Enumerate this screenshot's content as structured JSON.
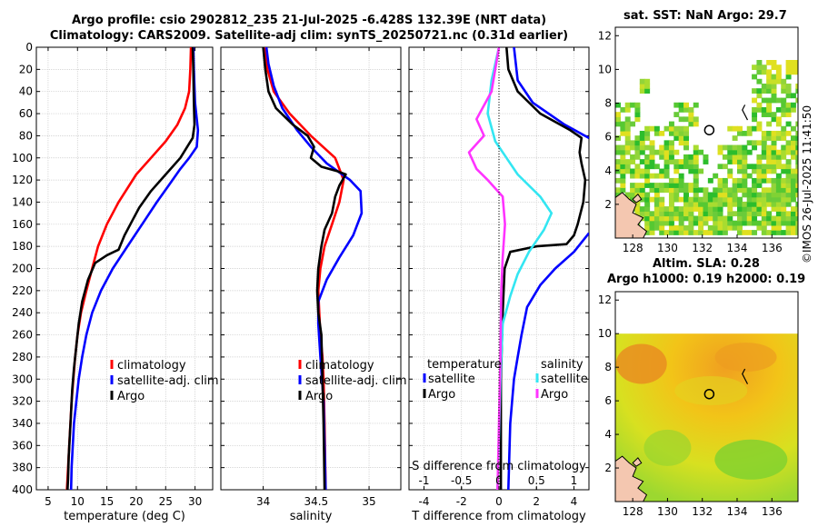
{
  "title": {
    "line1": "Argo profile: csio 2902812_235 21-Jul-2025 -6.428S 132.39E (NRT data)",
    "line2": "Climatology: CARS2009. Satellite-adj clim: synTS_20250721.nc (0.31d earlier)"
  },
  "colors": {
    "climatology": "#ff0000",
    "satellite": "#0000ff",
    "argo": "#000000",
    "s_satellite": "#33e6f2",
    "s_argo": "#ff33ff",
    "grid": "#c8c8c8"
  },
  "depth_ticks": [
    0,
    20,
    40,
    60,
    80,
    100,
    120,
    140,
    160,
    180,
    200,
    220,
    240,
    260,
    280,
    300,
    320,
    340,
    360,
    380,
    400
  ],
  "chart_data": [
    {
      "type": "line",
      "panel": "temperature",
      "xlabel": "temperature (deg C)",
      "ylabel": "",
      "xlim": [
        3,
        33
      ],
      "ylim": [
        400,
        0
      ],
      "xticks": [
        5,
        10,
        15,
        20,
        25,
        30
      ],
      "xtick_labels": [
        "5",
        "10",
        "15",
        "20",
        "25",
        "30"
      ],
      "legend": {
        "position": "lower-right",
        "entries": [
          "climatology",
          "satellite-adj. clim",
          "Argo"
        ]
      },
      "series": [
        {
          "name": "climatology",
          "color": "#ff0000",
          "points": [
            [
              29.3,
              0
            ],
            [
              29.2,
              20
            ],
            [
              29.0,
              40
            ],
            [
              28.3,
              55
            ],
            [
              27.0,
              70
            ],
            [
              25.0,
              85
            ],
            [
              22.5,
              100
            ],
            [
              20.0,
              115
            ],
            [
              17.0,
              140
            ],
            [
              15.0,
              160
            ],
            [
              13.5,
              180
            ],
            [
              12.5,
              200
            ],
            [
              11.5,
              220
            ],
            [
              10.6,
              240
            ],
            [
              10.0,
              260
            ],
            [
              9.6,
              280
            ],
            [
              9.3,
              300
            ],
            [
              9.0,
              320
            ],
            [
              8.8,
              340
            ],
            [
              8.6,
              360
            ],
            [
              8.4,
              380
            ],
            [
              8.2,
              400
            ]
          ]
        },
        {
          "name": "satellite-adj. clim",
          "color": "#0000ff",
          "points": [
            [
              29.7,
              0
            ],
            [
              29.8,
              20
            ],
            [
              30.0,
              50
            ],
            [
              30.5,
              75
            ],
            [
              30.3,
              90
            ],
            [
              29.0,
              100
            ],
            [
              27.5,
              110
            ],
            [
              25.5,
              125
            ],
            [
              23.5,
              140
            ],
            [
              21.0,
              160
            ],
            [
              18.5,
              180
            ],
            [
              16.0,
              200
            ],
            [
              14.0,
              220
            ],
            [
              12.5,
              240
            ],
            [
              11.5,
              260
            ],
            [
              10.8,
              280
            ],
            [
              10.2,
              300
            ],
            [
              9.8,
              320
            ],
            [
              9.4,
              340
            ],
            [
              9.2,
              360
            ],
            [
              9.0,
              380
            ],
            [
              8.9,
              400
            ]
          ]
        },
        {
          "name": "Argo",
          "color": "#000000",
          "points": [
            [
              29.6,
              0
            ],
            [
              29.7,
              20
            ],
            [
              29.8,
              50
            ],
            [
              29.9,
              70
            ],
            [
              29.6,
              82
            ],
            [
              27.5,
              100
            ],
            [
              25.0,
              115
            ],
            [
              22.5,
              130
            ],
            [
              20.5,
              145
            ],
            [
              19.5,
              155
            ],
            [
              18.0,
              170
            ],
            [
              17.0,
              183
            ],
            [
              15.0,
              188
            ],
            [
              13.0,
              195
            ],
            [
              11.8,
              210
            ],
            [
              10.8,
              230
            ],
            [
              10.2,
              250
            ],
            [
              9.8,
              270
            ],
            [
              9.4,
              290
            ],
            [
              9.1,
              310
            ],
            [
              8.9,
              330
            ],
            [
              8.7,
              350
            ],
            [
              8.5,
              370
            ],
            [
              8.4,
              390
            ],
            [
              8.3,
              400
            ]
          ]
        }
      ]
    },
    {
      "type": "line",
      "panel": "salinity",
      "xlabel": "salinity",
      "ylabel": "",
      "xlim": [
        33.6,
        35.3
      ],
      "ylim": [
        400,
        0
      ],
      "xticks": [
        34,
        34.5,
        35
      ],
      "xtick_labels": [
        "34",
        "34.5",
        "35"
      ],
      "legend": {
        "position": "lower-right",
        "entries": [
          "climatology",
          "satellite-adj. clim",
          "Argo"
        ]
      },
      "series": [
        {
          "name": "climatology",
          "color": "#ff0000",
          "points": [
            [
              34.02,
              0
            ],
            [
              34.04,
              20
            ],
            [
              34.1,
              40
            ],
            [
              34.25,
              60
            ],
            [
              34.45,
              80
            ],
            [
              34.68,
              100
            ],
            [
              34.76,
              120
            ],
            [
              34.72,
              140
            ],
            [
              34.65,
              160
            ],
            [
              34.58,
              180
            ],
            [
              34.54,
              200
            ],
            [
              34.52,
              220
            ],
            [
              34.53,
              240
            ],
            [
              34.54,
              260
            ],
            [
              34.56,
              280
            ],
            [
              34.57,
              300
            ],
            [
              34.58,
              340
            ],
            [
              34.59,
              400
            ]
          ]
        },
        {
          "name": "satellite-adj. clim",
          "color": "#0000ff",
          "points": [
            [
              34.03,
              0
            ],
            [
              34.05,
              15
            ],
            [
              34.1,
              35
            ],
            [
              34.18,
              55
            ],
            [
              34.32,
              75
            ],
            [
              34.45,
              90
            ],
            [
              34.6,
              105
            ],
            [
              34.82,
              120
            ],
            [
              34.92,
              130
            ],
            [
              34.93,
              150
            ],
            [
              34.85,
              170
            ],
            [
              34.72,
              190
            ],
            [
              34.6,
              210
            ],
            [
              34.52,
              230
            ],
            [
              34.52,
              250
            ],
            [
              34.54,
              280
            ],
            [
              34.57,
              320
            ],
            [
              34.59,
              400
            ]
          ]
        },
        {
          "name": "Argo",
          "color": "#000000",
          "points": [
            [
              34.0,
              0
            ],
            [
              34.02,
              20
            ],
            [
              34.05,
              40
            ],
            [
              34.12,
              55
            ],
            [
              34.28,
              70
            ],
            [
              34.42,
              80
            ],
            [
              34.48,
              90
            ],
            [
              34.45,
              100
            ],
            [
              34.55,
              108
            ],
            [
              34.7,
              112
            ],
            [
              34.78,
              115
            ],
            [
              34.72,
              125
            ],
            [
              34.68,
              135
            ],
            [
              34.65,
              150
            ],
            [
              34.58,
              165
            ],
            [
              34.55,
              180
            ],
            [
              34.52,
              200
            ],
            [
              34.51,
              220
            ],
            [
              34.52,
              240
            ],
            [
              34.55,
              260
            ],
            [
              34.56,
              300
            ],
            [
              34.57,
              340
            ],
            [
              34.58,
              400
            ]
          ]
        }
      ]
    },
    {
      "type": "line",
      "panel": "difference",
      "xlabel": "T difference from climatology",
      "xlabel_top": "S difference from climatology",
      "xlim": [
        -4.8,
        4.8
      ],
      "ylim": [
        400,
        0
      ],
      "xticks": [
        -4,
        -2,
        0,
        2,
        4
      ],
      "xtick_labels": [
        "-4",
        "-2",
        "0",
        "2",
        "4"
      ],
      "xticks_top": [
        -1,
        -0.5,
        0,
        0.5,
        1
      ],
      "xtick_labels_top": [
        "-1",
        "-0.5",
        "0",
        "0.5",
        "1"
      ],
      "legend_left": {
        "title": "temperature",
        "entries": [
          "satellite",
          "Argo"
        ]
      },
      "legend_right": {
        "title": "salinity",
        "entries": [
          "satellite",
          "Argo"
        ]
      },
      "series": [
        {
          "name": "T satellite",
          "color": "#0000ff",
          "points": [
            [
              0.8,
              0
            ],
            [
              1.0,
              30
            ],
            [
              1.8,
              50
            ],
            [
              3.5,
              70
            ],
            [
              4.8,
              82
            ]
          ]
        },
        {
          "name": "T satellite (deep)",
          "color": "#0000ff",
          "points": [
            [
              4.8,
              168
            ],
            [
              4.0,
              185
            ],
            [
              3.0,
              200
            ],
            [
              2.2,
              215
            ],
            [
              1.5,
              235
            ],
            [
              1.2,
              260
            ],
            [
              1.0,
              280
            ],
            [
              0.8,
              300
            ],
            [
              0.6,
              340
            ],
            [
              0.5,
              400
            ]
          ]
        },
        {
          "name": "T Argo",
          "color": "#000000",
          "points": [
            [
              0.4,
              0
            ],
            [
              0.5,
              20
            ],
            [
              1.0,
              40
            ],
            [
              2.2,
              60
            ],
            [
              3.8,
              75
            ],
            [
              4.4,
              82
            ],
            [
              4.3,
              95
            ],
            [
              4.4,
              105
            ],
            [
              4.6,
              120
            ],
            [
              4.5,
              140
            ],
            [
              4.2,
              160
            ],
            [
              4.0,
              170
            ],
            [
              3.6,
              178
            ],
            [
              2.0,
              180
            ],
            [
              0.6,
              185
            ],
            [
              0.3,
              200
            ],
            [
              0.2,
              240
            ],
            [
              0.1,
              300
            ],
            [
              0.1,
              400
            ]
          ]
        },
        {
          "name": "S satellite",
          "color": "#33e6f2",
          "points": [
            [
              0.0,
              0
            ],
            [
              -0.1,
              30
            ],
            [
              -0.15,
              60
            ],
            [
              -0.05,
              85
            ],
            [
              0.1,
              100
            ],
            [
              0.25,
              115
            ],
            [
              0.55,
              135
            ],
            [
              0.7,
              150
            ],
            [
              0.6,
              165
            ],
            [
              0.4,
              185
            ],
            [
              0.25,
              205
            ],
            [
              0.15,
              225
            ],
            [
              0.05,
              250
            ],
            [
              0.02,
              300
            ],
            [
              0.0,
              350
            ],
            [
              -0.02,
              400
            ]
          ]
        },
        {
          "name": "S Argo",
          "color": "#ff33ff",
          "points": [
            [
              0.0,
              0
            ],
            [
              -0.05,
              20
            ],
            [
              -0.1,
              40
            ],
            [
              -0.3,
              65
            ],
            [
              -0.2,
              80
            ],
            [
              -0.4,
              95
            ],
            [
              -0.3,
              110
            ],
            [
              -0.15,
              120
            ],
            [
              0.05,
              135
            ],
            [
              0.08,
              160
            ],
            [
              0.05,
              190
            ],
            [
              0.03,
              220
            ],
            [
              0.02,
              280
            ],
            [
              0.0,
              340
            ],
            [
              -0.02,
              400
            ]
          ]
        }
      ]
    },
    {
      "type": "heatmap",
      "panel": "sat-sst-map",
      "title": "sat. SST: NaN Argo: 29.7",
      "xlim": [
        127,
        137.5
      ],
      "ylim": [
        0,
        12.5
      ],
      "xticks": [
        128,
        130,
        132,
        134,
        136
      ],
      "xtick_labels": [
        "128",
        "130",
        "132",
        "134",
        "136"
      ],
      "yticks": [
        2,
        4,
        6,
        8,
        10,
        12
      ],
      "ytick_labels": [
        "2",
        "4",
        "6",
        "8",
        "10",
        "12"
      ],
      "argo_position": [
        132.4,
        6.4
      ]
    },
    {
      "type": "heatmap",
      "panel": "altim-sla-map",
      "title_line1": "Altim. SLA: 0.28",
      "title_line2": "Argo h1000: 0.19 h2000: 0.19",
      "xlim": [
        127,
        137.5
      ],
      "ylim": [
        0,
        12.5
      ],
      "xticks": [
        128,
        130,
        132,
        134,
        136
      ],
      "xtick_labels": [
        "128",
        "130",
        "132",
        "134",
        "136"
      ],
      "yticks": [
        2,
        4,
        6,
        8,
        10,
        12
      ],
      "ytick_labels": [
        "2",
        "4",
        "6",
        "8",
        "10",
        "12"
      ],
      "argo_position": [
        132.4,
        6.4
      ]
    }
  ],
  "credit": "©IMOS 26-Jul-2025 11:41:50"
}
